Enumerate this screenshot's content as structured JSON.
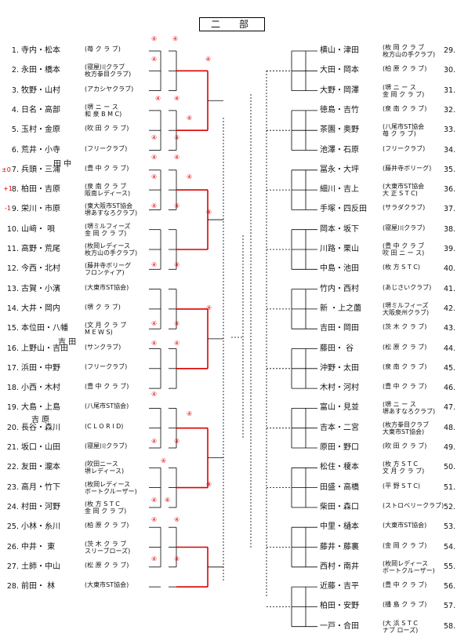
{
  "title": "二　部",
  "left": [
    {
      "n": "1.",
      "name": "寺内・松本",
      "club": "(苺 ク ラ ブ)"
    },
    {
      "n": "2.",
      "name": "永田・橋本",
      "club": "(寝屋川クラブ\n 枚方拳目クラブ)"
    },
    {
      "n": "3.",
      "name": "牧野・山村",
      "club": "(アカシヤクラブ)"
    },
    {
      "n": "4.",
      "name": "日名・高部",
      "club": "(堺 ニ ー ス\n 和 泉 B M C)"
    },
    {
      "n": "5.",
      "name": "玉村・金原",
      "club": "(吹 田 ク ラ ブ)"
    },
    {
      "n": "6.",
      "name": "荒井・小寺",
      "club": "(フリークラブ)"
    },
    {
      "n": "7.",
      "name": "兵頭・三浦",
      "club": "(豊 中 ク ラ ブ)"
    },
    {
      "n": "8.",
      "name": "柏田・吉原",
      "club": "(泉 南 ク ラ ブ\n 阪南レディース)"
    },
    {
      "n": "9.",
      "name": "栄川・市原",
      "club": "(東大阪市ST協会\n 堺あすなろクラブ)"
    },
    {
      "n": "10.",
      "name": "山﨑・ 唄",
      "club": "(堺ミルフィーズ\n 金 岡 ク ラ ブ)"
    },
    {
      "n": "11.",
      "name": "高野・荒尾",
      "club": "(枚岡レディース\n 枚方山の手クラブ)"
    },
    {
      "n": "12.",
      "name": "今西・北村",
      "club": "(藤井寺ボリーグ\n フロンティア)"
    },
    {
      "n": "13.",
      "name": "古賀・小濱",
      "club": "(大東市ST協会)"
    },
    {
      "n": "14.",
      "name": "大井・岡内",
      "club": "(堺 ク ラ ブ)"
    },
    {
      "n": "15.",
      "name": "本位田・八幡",
      "club": "(文 月 ク ラ ブ\n M E W S)"
    },
    {
      "n": "16.",
      "name": "上野山・吉田",
      "club": "(サンクラブ)"
    },
    {
      "n": "17.",
      "name": "浜田・中野",
      "club": "(フリークラブ)"
    },
    {
      "n": "18.",
      "name": "小西・木村",
      "club": "(豊 中 ク ラ ブ)"
    },
    {
      "n": "19.",
      "name": "大島・上島",
      "club": "(八尾市ST協会)"
    },
    {
      "n": "20.",
      "name": "長谷・森川",
      "club": "(C L O R I D)"
    },
    {
      "n": "21.",
      "name": "坂口・山田",
      "club": "(寝屋川クラブ)"
    },
    {
      "n": "22.",
      "name": "友田・瀧本",
      "club": "(吹田ニース\n 堺レディース)"
    },
    {
      "n": "23.",
      "name": "高月・竹下",
      "club": "(枚岡レディース\n ボートクルーザー)"
    },
    {
      "n": "24.",
      "name": "村田・河野",
      "club": "(枚 方 S T C\n 金 岡 ク ラ ブ)"
    },
    {
      "n": "25.",
      "name": "小林・糸川",
      "club": "(柏 原 ク ラ ブ)"
    },
    {
      "n": "26.",
      "name": "中井・ 東",
      "club": "(茨 木 ク ラ ブ\n スリーブローズ)"
    },
    {
      "n": "27.",
      "name": "土師・中山",
      "club": "(松 原 ク ラ ブ)"
    },
    {
      "n": "28.",
      "name": "前田・ 林",
      "club": "(大東市ST協会)"
    }
  ],
  "right": [
    {
      "n": "29.",
      "name": "横山・津田",
      "club": "(枚 岡 ク ラ ブ\n 枚方山の手クラブ)"
    },
    {
      "n": "30.",
      "name": "大田・岡本",
      "club": "(柏 原 ク ラ ブ)"
    },
    {
      "n": "31.",
      "name": "大野・岡澤",
      "club": "(堺 ニ ー ス\n 金 岡 ク ラ ブ)"
    },
    {
      "n": "32.",
      "name": "徳島・吉竹",
      "club": "(泉 南 ク ラ ブ)"
    },
    {
      "n": "33.",
      "name": "茶園・奥野",
      "club": "(八尾市ST協会\n 苺 ク ラ ブ)"
    },
    {
      "n": "34.",
      "name": "池澤・石原",
      "club": "(フリークラブ)"
    },
    {
      "n": "35.",
      "name": "冨永・大坪",
      "club": "(藤井寺ボリーグ)"
    },
    {
      "n": "36.",
      "name": "細川・吉上",
      "club": "(大東市ST協会\n 大 正 S T C)"
    },
    {
      "n": "37.",
      "name": "手塚・四反田",
      "club": "(サラダクラブ)"
    },
    {
      "n": "38.",
      "name": "岡本・坂下",
      "club": "(寝屋川クラブ)"
    },
    {
      "n": "39.",
      "name": "川路・栗山",
      "club": "(豊 中 ク ラ ブ\n 吹 田 ニ ー ス)"
    },
    {
      "n": "40.",
      "name": "中島・池田",
      "club": "(枚 方 S T C)"
    },
    {
      "n": "41.",
      "name": "竹内・西村",
      "club": "(あじさいクラブ)"
    },
    {
      "n": "42.",
      "name": "新 ・上之薗",
      "club": "(堺ミルフィーズ\n 大阪泉州クラブ)"
    },
    {
      "n": "43.",
      "name": "吉田・岡田",
      "club": "(茨 木 ク ラ ブ)"
    },
    {
      "n": "44.",
      "name": "藤田・ 谷",
      "club": "(松 原 ク ラ ブ)"
    },
    {
      "n": "45.",
      "name": "沖野・太田",
      "club": "(泉 南 ク ラ ブ)"
    },
    {
      "n": "46.",
      "name": "木村・河村",
      "club": "(豊 中 ク ラ ブ)"
    },
    {
      "n": "47.",
      "name": "富山・見並",
      "club": "(堺 ニ ー ス\n 堺あすなろクラブ)"
    },
    {
      "n": "48.",
      "name": "吉本・二宮",
      "club": "(枚方拳目クラブ\n 大東市ST協会)"
    },
    {
      "n": "49.",
      "name": "原田・野口",
      "club": "(吹 田 ク ラ ブ)"
    },
    {
      "n": "50.",
      "name": "松住・榎本",
      "club": "(枚 方 S T C\n 文 月 ク ラ ブ)"
    },
    {
      "n": "51.",
      "name": "田盛・高橋",
      "club": "(平 野 S T C)"
    },
    {
      "n": "52.",
      "name": "柴田・森口",
      "club": "(ストロベリークラブ)"
    },
    {
      "n": "53.",
      "name": "中里・樋本",
      "club": "(大東市ST協会)"
    },
    {
      "n": "54.",
      "name": "藤井・藤裏",
      "club": "(金 岡 ク ラ ブ)"
    },
    {
      "n": "55.",
      "name": "西村・南井",
      "club": "(枚岡レディース\n ボートクルーザー)"
    },
    {
      "n": "56.",
      "name": "近藤・吉平",
      "club": "(豊 中 ク ラ ブ)"
    },
    {
      "n": "57.",
      "name": "柏田・安野",
      "club": "(播 島 ク ラ ブ)"
    },
    {
      "n": "58.",
      "name": "一戸・合田",
      "club": "(大 浜 S T C\n ナブ ローズ)"
    }
  ],
  "side_marks": [
    "±0",
    "+1",
    "-1"
  ],
  "annotations": [
    "田 中",
    "吉 田",
    "吉 原"
  ]
}
